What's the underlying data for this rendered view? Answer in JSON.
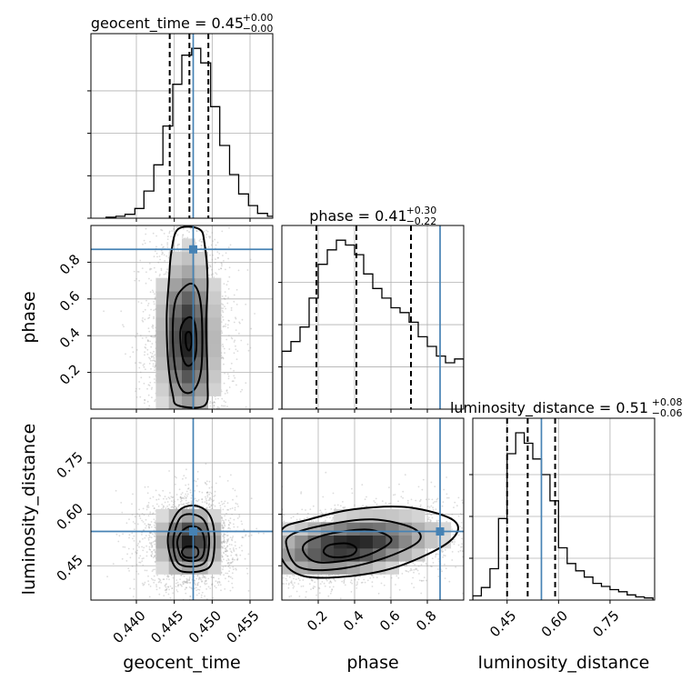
{
  "chart_data": {
    "type": "corner",
    "parameters": [
      "geocent_time",
      "phase",
      "luminosity_distance"
    ],
    "axis_labels": {
      "geocent_time": "geocent_time",
      "phase": "phase",
      "luminosity_distance": "luminosity_distance"
    },
    "ranges": {
      "geocent_time": [
        0.434,
        0.458
      ],
      "phase": [
        0.0,
        1.0
      ],
      "luminosity_distance": [
        0.35,
        0.88
      ]
    },
    "ticks": {
      "geocent_time": [
        0.44,
        0.445,
        0.45,
        0.455
      ],
      "phase": [
        0.2,
        0.4,
        0.6,
        0.8
      ],
      "luminosity_distance": [
        0.45,
        0.6,
        0.75
      ]
    },
    "tick_labels": {
      "geocent_time": [
        "0.440",
        "0.445",
        "0.450",
        "0.455"
      ],
      "phase": [
        "0.2",
        "0.4",
        "0.6",
        "0.8"
      ],
      "luminosity_distance": [
        "0.45",
        "0.60",
        "0.75"
      ]
    },
    "truths": {
      "geocent_time": 0.4475,
      "phase": 0.87,
      "luminosity_distance": 0.55
    },
    "quantiles": {
      "geocent_time": [
        0.4444,
        0.447,
        0.4495
      ],
      "phase": [
        0.19,
        0.41,
        0.71
      ],
      "luminosity_distance": [
        0.45,
        0.51,
        0.59
      ]
    },
    "titles": [
      {
        "param": "geocent_time",
        "label": "geocent_time",
        "value": "0.45",
        "plus": "+0.00",
        "minus": "−0.00"
      },
      {
        "param": "phase",
        "label": "phase",
        "value": "0.41",
        "plus": "+0.30",
        "minus": "−0.22"
      },
      {
        "param": "luminosity_distance",
        "label": "luminosity_distance",
        "value": "0.51",
        "plus": "+0.08",
        "minus": "−0.06"
      }
    ],
    "histograms": {
      "geocent_time": {
        "bins": [
          0.436,
          0.4373,
          0.4385,
          0.4398,
          0.441,
          0.4423,
          0.4435,
          0.4448,
          0.446,
          0.4473,
          0.4485,
          0.4498,
          0.451,
          0.4523,
          0.4535,
          0.4548,
          0.456,
          0.4573,
          0.4585
        ],
        "counts": [
          1,
          2,
          4,
          10,
          28,
          55,
          95,
          138,
          168,
          175,
          160,
          115,
          75,
          45,
          25,
          13,
          5,
          2
        ]
      },
      "phase": {
        "bins": [
          0.0,
          0.05,
          0.1,
          0.15,
          0.2,
          0.25,
          0.3,
          0.35,
          0.4,
          0.45,
          0.5,
          0.55,
          0.6,
          0.65,
          0.7,
          0.75,
          0.8,
          0.85,
          0.9,
          0.95,
          1.0
        ],
        "counts": [
          60,
          70,
          85,
          115,
          150,
          165,
          175,
          170,
          160,
          140,
          125,
          115,
          105,
          100,
          90,
          75,
          65,
          55,
          48,
          52
        ]
      },
      "luminosity_distance": {
        "bins": [
          0.35,
          0.375,
          0.4,
          0.425,
          0.45,
          0.475,
          0.5,
          0.525,
          0.55,
          0.575,
          0.6,
          0.625,
          0.65,
          0.675,
          0.7,
          0.725,
          0.75,
          0.775,
          0.8,
          0.825,
          0.85,
          0.875
        ],
        "counts": [
          4,
          12,
          30,
          78,
          140,
          160,
          150,
          135,
          120,
          95,
          50,
          35,
          28,
          22,
          16,
          13,
          10,
          8,
          5,
          3,
          2
        ]
      }
    },
    "densities": {
      "phase_vs_geocent_time": {
        "cx": 0.4468,
        "cy": 0.38,
        "sx": 0.0022,
        "sy": 0.26
      },
      "luminosity_distance_vs_geocent_time": {
        "cx": 0.447,
        "cy": 0.52,
        "sx": 0.0024,
        "sy": 0.055
      },
      "luminosity_distance_vs_phase": {
        "cx": 0.38,
        "cy": 0.51,
        "sx": 0.26,
        "sy": 0.05,
        "rho": 0.35
      }
    },
    "contours": {
      "phase_vs_geocent_time": [
        {
          "points": [
            [
              0.4465,
              0.4
            ],
            [
              0.4466,
              0.34
            ],
            [
              0.447,
              0.32
            ],
            [
              0.4473,
              0.36
            ],
            [
              0.4472,
              0.41
            ],
            [
              0.4468,
              0.42
            ]
          ]
        },
        {
          "points": [
            [
              0.4458,
              0.42
            ],
            [
              0.446,
              0.3
            ],
            [
              0.4466,
              0.24
            ],
            [
              0.4474,
              0.25
            ],
            [
              0.4479,
              0.32
            ],
            [
              0.4478,
              0.45
            ],
            [
              0.4472,
              0.5
            ],
            [
              0.4463,
              0.48
            ]
          ]
        },
        {
          "points": [
            [
              0.4448,
              0.4
            ],
            [
              0.4452,
              0.2
            ],
            [
              0.4461,
              0.1
            ],
            [
              0.4475,
              0.1
            ],
            [
              0.4485,
              0.2
            ],
            [
              0.4487,
              0.4
            ],
            [
              0.4484,
              0.6
            ],
            [
              0.4475,
              0.68
            ],
            [
              0.4462,
              0.66
            ],
            [
              0.4451,
              0.58
            ]
          ]
        },
        {
          "points": [
            [
              0.444,
              0.5
            ],
            [
              0.4442,
              0.25
            ],
            [
              0.4448,
              0.08
            ],
            [
              0.4455,
              0.02
            ],
            [
              0.449,
              0.02
            ],
            [
              0.4494,
              0.15
            ],
            [
              0.4492,
              0.45
            ],
            [
              0.4494,
              0.7
            ],
            [
              0.449,
              0.9
            ],
            [
              0.4483,
              0.98
            ],
            [
              0.4455,
              0.98
            ],
            [
              0.4446,
              0.85
            ],
            [
              0.4443,
              0.7
            ]
          ]
        }
      ],
      "luminosity_distance_vs_geocent_time": [
        {
          "points": [
            [
              0.446,
              0.49
            ],
            [
              0.4465,
              0.475
            ],
            [
              0.4478,
              0.475
            ],
            [
              0.4482,
              0.49
            ],
            [
              0.4478,
              0.505
            ],
            [
              0.4465,
              0.505
            ]
          ]
        },
        {
          "points": [
            [
              0.4454,
              0.52
            ],
            [
              0.4458,
              0.48
            ],
            [
              0.4466,
              0.465
            ],
            [
              0.448,
              0.465
            ],
            [
              0.4488,
              0.48
            ],
            [
              0.449,
              0.52
            ],
            [
              0.4485,
              0.555
            ],
            [
              0.4472,
              0.565
            ],
            [
              0.446,
              0.55
            ]
          ]
        },
        {
          "points": [
            [
              0.4449,
              0.53
            ],
            [
              0.4452,
              0.47
            ],
            [
              0.4462,
              0.45
            ],
            [
              0.4482,
              0.45
            ],
            [
              0.4493,
              0.47
            ],
            [
              0.4496,
              0.53
            ],
            [
              0.449,
              0.58
            ],
            [
              0.4475,
              0.6
            ],
            [
              0.4458,
              0.59
            ]
          ]
        },
        {
          "points": [
            [
              0.4442,
              0.54
            ],
            [
              0.4446,
              0.47
            ],
            [
              0.4458,
              0.435
            ],
            [
              0.4486,
              0.435
            ],
            [
              0.45,
              0.46
            ],
            [
              0.4503,
              0.54
            ],
            [
              0.4496,
              0.6
            ],
            [
              0.4478,
              0.625
            ],
            [
              0.4456,
              0.61
            ]
          ]
        }
      ],
      "luminosity_distance_vs_phase": [
        {
          "points": [
            [
              0.23,
              0.49
            ],
            [
              0.28,
              0.475
            ],
            [
              0.38,
              0.48
            ],
            [
              0.41,
              0.5
            ],
            [
              0.36,
              0.515
            ],
            [
              0.26,
              0.51
            ]
          ]
        },
        {
          "points": [
            [
              0.12,
              0.49
            ],
            [
              0.2,
              0.46
            ],
            [
              0.4,
              0.47
            ],
            [
              0.55,
              0.5
            ],
            [
              0.6,
              0.53
            ],
            [
              0.48,
              0.555
            ],
            [
              0.28,
              0.545
            ],
            [
              0.14,
              0.52
            ]
          ]
        },
        {
          "points": [
            [
              0.03,
              0.5
            ],
            [
              0.1,
              0.445
            ],
            [
              0.3,
              0.44
            ],
            [
              0.55,
              0.47
            ],
            [
              0.75,
              0.52
            ],
            [
              0.72,
              0.56
            ],
            [
              0.5,
              0.585
            ],
            [
              0.25,
              0.57
            ],
            [
              0.05,
              0.54
            ]
          ]
        },
        {
          "points": [
            [
              0.0,
              0.47
            ],
            [
              0.12,
              0.42
            ],
            [
              0.38,
              0.42
            ],
            [
              0.65,
              0.45
            ],
            [
              0.92,
              0.52
            ],
            [
              0.95,
              0.58
            ],
            [
              0.7,
              0.62
            ],
            [
              0.4,
              0.615
            ],
            [
              0.15,
              0.585
            ],
            [
              0.0,
              0.555
            ]
          ]
        }
      ]
    },
    "grid": true
  }
}
